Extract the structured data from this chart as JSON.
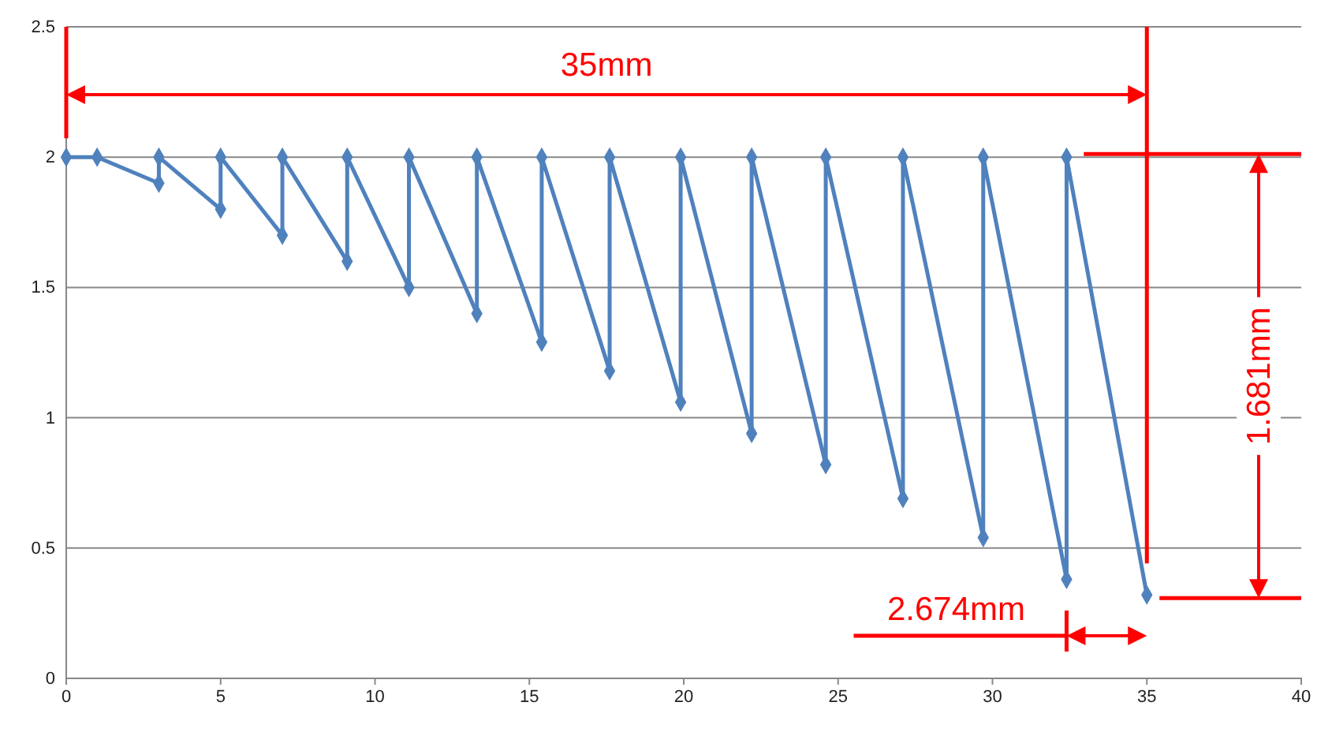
{
  "chart_data": {
    "type": "line",
    "x": [
      0,
      1,
      3,
      3,
      5,
      5,
      7,
      7,
      9.1,
      9.1,
      11.1,
      11.1,
      13.3,
      13.3,
      15.4,
      15.4,
      17.6,
      17.6,
      19.9,
      19.9,
      22.2,
      22.2,
      24.6,
      24.6,
      27.1,
      27.1,
      29.7,
      29.7,
      32.4,
      32.4,
      35
    ],
    "series": [
      {
        "color": "#4f81bd",
        "values": [
          2,
          2,
          1.9,
          2,
          1.8,
          2,
          1.7,
          2,
          1.6,
          2,
          1.5,
          2,
          1.4,
          2,
          1.29,
          2,
          1.18,
          2,
          1.06,
          2,
          0.94,
          2,
          0.82,
          2,
          0.69,
          2,
          0.54,
          2,
          0.38,
          2,
          0.32
        ]
      }
    ],
    "xlim": [
      0,
      40
    ],
    "xticks": [
      0,
      5,
      10,
      15,
      20,
      25,
      30,
      35,
      40
    ],
    "ylim": [
      0,
      2.5
    ],
    "yticks": [
      0,
      0.5,
      1,
      1.5,
      2,
      2.5
    ],
    "grid": "y",
    "marker": "diamond",
    "line_style": "solid",
    "ref_lines": [
      {
        "axis": "x",
        "value": 35,
        "color": "#ff0000"
      }
    ],
    "annotations": [
      "35mm",
      "1.681mm",
      "2.674mm"
    ]
  }
}
